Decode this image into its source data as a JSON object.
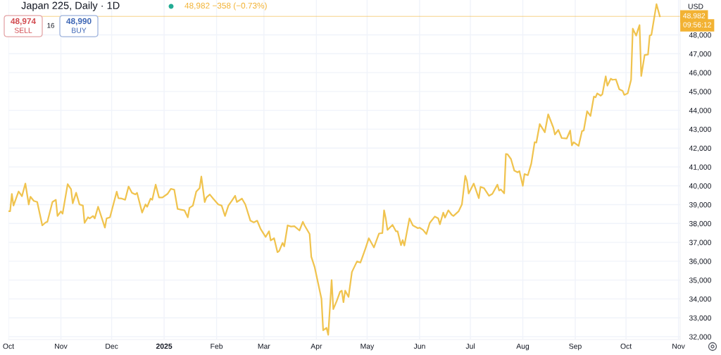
{
  "chart_data": {
    "type": "line",
    "title": "Japan 225, Daily · 1D",
    "annotations": [
      "48,982 −358 (−0.73%)",
      "48,974",
      "SELL",
      "16",
      "48,990",
      "BUY",
      "USD",
      "09:56:12"
    ],
    "x": [
      "2024-10-01",
      "2024-10-02",
      "2024-10-03",
      "2024-10-04",
      "2024-10-06",
      "2024-10-07",
      "2024-10-09",
      "2024-10-11",
      "2024-10-13",
      "2024-10-14",
      "2024-10-16",
      "2024-10-18",
      "2024-10-21",
      "2024-10-23",
      "2024-10-24",
      "2024-10-27",
      "2024-10-29",
      "2024-10-30",
      "2024-11-01",
      "2024-11-02",
      "2024-11-05",
      "2024-11-07",
      "2024-11-08",
      "2024-11-10",
      "2024-11-12",
      "2024-11-14",
      "2024-11-15",
      "2024-11-17",
      "2024-11-18",
      "2024-11-20",
      "2024-11-21",
      "2024-11-23",
      "2024-11-27",
      "2024-11-28",
      "2024-11-30",
      "2024-12-04",
      "2024-12-05",
      "2024-12-07",
      "2024-12-09",
      "2024-12-11",
      "2024-12-13",
      "2024-12-15",
      "2024-12-16",
      "2024-12-19",
      "2024-12-21",
      "2024-12-22",
      "2024-12-24",
      "2024-12-25",
      "2024-12-27",
      "2024-12-29",
      "2024-12-31",
      "2025-01-03",
      "2025-01-05",
      "2025-01-07",
      "2025-01-09",
      "2025-01-13",
      "2025-01-15",
      "2025-01-16",
      "2025-01-18",
      "2025-01-20",
      "2025-01-22",
      "2025-01-23",
      "2025-01-25",
      "2025-01-26",
      "2025-01-28",
      "2025-01-30",
      "2025-02-02",
      "2025-02-04",
      "2025-02-06",
      "2025-02-08",
      "2025-02-10",
      "2025-02-12",
      "2025-02-13",
      "2025-02-16",
      "2025-02-18",
      "2025-02-21",
      "2025-02-23",
      "2025-02-25",
      "2025-02-27",
      "2025-03-02",
      "2025-03-04",
      "2025-03-05",
      "2025-03-07",
      "2025-03-09",
      "2025-03-10",
      "2025-03-12",
      "2025-03-13",
      "2025-03-15",
      "2025-03-17",
      "2025-03-19",
      "2025-03-22",
      "2025-03-24",
      "2025-03-25",
      "2025-03-28",
      "2025-03-29",
      "2025-03-31",
      "2025-04-04",
      "2025-04-05",
      "2025-04-07",
      "2025-04-08",
      "2025-04-10",
      "2025-04-11",
      "2025-04-13",
      "2025-04-15",
      "2025-04-16",
      "2025-04-17",
      "2025-04-18",
      "2025-04-20",
      "2025-04-22",
      "2025-04-25",
      "2025-04-27",
      "2025-04-28",
      "2025-04-30",
      "2025-05-02",
      "2025-05-05",
      "2025-05-08",
      "2025-05-10",
      "2025-05-11",
      "2025-05-12",
      "2025-05-13",
      "2025-05-16",
      "2025-05-18",
      "2025-05-19",
      "2025-05-21",
      "2025-05-22",
      "2025-05-23",
      "2025-05-26",
      "2025-05-28",
      "2025-05-31",
      "2025-06-01",
      "2025-06-03",
      "2025-06-05",
      "2025-06-07",
      "2025-06-10",
      "2025-06-12",
      "2025-06-13",
      "2025-06-15",
      "2025-06-16",
      "2025-06-18",
      "2025-06-20",
      "2025-06-21",
      "2025-06-24",
      "2025-06-26",
      "2025-06-28",
      "2025-06-29",
      "2025-06-30",
      "2025-07-03",
      "2025-07-06",
      "2025-07-07",
      "2025-07-09",
      "2025-07-12",
      "2025-07-14",
      "2025-07-17",
      "2025-07-18",
      "2025-07-19",
      "2025-07-21",
      "2025-07-22",
      "2025-07-23",
      "2025-07-25",
      "2025-07-27",
      "2025-07-29",
      "2025-07-30",
      "2025-08-01",
      "2025-08-02",
      "2025-08-04",
      "2025-08-06",
      "2025-08-08",
      "2025-08-09",
      "2025-08-11",
      "2025-08-14",
      "2025-08-16",
      "2025-08-19",
      "2025-08-20",
      "2025-08-22",
      "2025-08-24",
      "2025-08-27",
      "2025-08-29",
      "2025-08-30",
      "2025-08-31",
      "2025-09-03",
      "2025-09-05",
      "2025-09-06",
      "2025-09-08",
      "2025-09-10",
      "2025-09-12",
      "2025-09-13",
      "2025-09-14",
      "2025-09-16",
      "2025-09-17",
      "2025-09-19",
      "2025-09-20",
      "2025-09-22",
      "2025-09-23",
      "2025-09-25",
      "2025-09-27",
      "2025-09-29",
      "2025-09-30",
      "2025-10-02",
      "2025-10-04",
      "2025-10-05",
      "2025-10-07",
      "2025-10-08",
      "2025-10-09",
      "2025-10-10",
      "2025-10-12",
      "2025-10-14",
      "2025-10-15",
      "2025-10-16",
      "2025-10-19",
      "2025-10-21"
    ],
    "series": [
      {
        "color": "#f0c34e",
        "values": [
          38650,
          38650,
          39570,
          38950,
          39450,
          39700,
          39450,
          40120,
          39010,
          39420,
          39200,
          39140,
          37900,
          38060,
          38090,
          39140,
          39260,
          38400,
          38640,
          38520,
          40090,
          39820,
          39070,
          39630,
          39010,
          38950,
          38030,
          38330,
          38270,
          38400,
          38270,
          38890,
          37780,
          38270,
          38330,
          39690,
          39340,
          39320,
          39260,
          39960,
          39630,
          39540,
          39630,
          38580,
          39010,
          38890,
          39320,
          39260,
          40060,
          39380,
          39380,
          39570,
          39840,
          39790,
          38770,
          38700,
          38330,
          38830,
          38950,
          39690,
          39880,
          40490,
          39140,
          39380,
          39540,
          39320,
          39010,
          38950,
          38400,
          38950,
          39200,
          39470,
          39140,
          39320,
          39010,
          38150,
          38060,
          38150,
          37720,
          37290,
          37590,
          37100,
          37220,
          36480,
          36540,
          36970,
          36790,
          37900,
          37840,
          37860,
          37630,
          38090,
          37900,
          37440,
          36230,
          35680,
          34010,
          32340,
          32470,
          32100,
          35000,
          33460,
          33890,
          34380,
          34440,
          33830,
          34440,
          34110,
          35430,
          35990,
          35930,
          36170,
          36670,
          37220,
          36730,
          37470,
          37490,
          38700,
          38270,
          37660,
          37930,
          37590,
          37590,
          36850,
          37120,
          36830,
          38270,
          37900,
          37750,
          37780,
          37660,
          37440,
          38030,
          38370,
          38270,
          37960,
          38580,
          38310,
          38700,
          38460,
          38400,
          38640,
          39010,
          40530,
          40250,
          39590,
          40120,
          39340,
          39940,
          39880,
          39470,
          39570,
          40060,
          39750,
          39810,
          39600,
          41690,
          41670,
          41420,
          40800,
          40710,
          40780,
          40000,
          40620,
          40560,
          41170,
          42310,
          42290,
          43270,
          42840,
          43790,
          43090,
          42720,
          42960,
          42530,
          42510,
          42930,
          42140,
          42310,
          42120,
          42900,
          42930,
          43950,
          43700,
          44730,
          44690,
          44900,
          44780,
          44850,
          45800,
          45310,
          45680,
          45620,
          45640,
          45120,
          45030,
          44820,
          44900,
          45620,
          48330,
          47960,
          48260,
          48520,
          45820,
          46930,
          46960,
          47960,
          48000,
          49630,
          48980
        ]
      }
    ],
    "xlim": [
      "2024-10-01",
      "2025-11-02"
    ],
    "xticks": [
      {
        "value": "2024-10-01",
        "label": "Oct"
      },
      {
        "value": "2024-11-01",
        "label": "Nov"
      },
      {
        "value": "2024-12-01",
        "label": "Dec"
      },
      {
        "value": "2025-01-01",
        "label": "2025"
      },
      {
        "value": "2025-02-01",
        "label": "Feb"
      },
      {
        "value": "2025-03-01",
        "label": "Mar"
      },
      {
        "value": "2025-04-01",
        "label": "Apr"
      },
      {
        "value": "2025-05-01",
        "label": "May"
      },
      {
        "value": "2025-06-01",
        "label": "Jun"
      },
      {
        "value": "2025-07-01",
        "label": "Jul"
      },
      {
        "value": "2025-08-01",
        "label": "Aug"
      },
      {
        "value": "2025-09-01",
        "label": "Sep"
      },
      {
        "value": "2025-10-01",
        "label": "Oct"
      },
      {
        "value": "2025-11-01",
        "label": "Nov"
      }
    ],
    "ylim": [
      31850,
      49850
    ],
    "yticks": [
      {
        "value": 32000,
        "label": "32,000"
      },
      {
        "value": 33000,
        "label": "33,000"
      },
      {
        "value": 34000,
        "label": "34,000"
      },
      {
        "value": 35000,
        "label": "35,000"
      },
      {
        "value": 36000,
        "label": "36,000"
      },
      {
        "value": 37000,
        "label": "37,000"
      },
      {
        "value": 38000,
        "label": "38,000"
      },
      {
        "value": 39000,
        "label": "39,000"
      },
      {
        "value": 40000,
        "label": "40,000"
      },
      {
        "value": 41000,
        "label": "41,000"
      },
      {
        "value": 42000,
        "label": "42,000"
      },
      {
        "value": 43000,
        "label": "43,000"
      },
      {
        "value": 44000,
        "label": "44,000"
      },
      {
        "value": 45000,
        "label": "45,000"
      },
      {
        "value": 46000,
        "label": "46,000"
      },
      {
        "value": 47000,
        "label": "47,000"
      },
      {
        "value": 48000,
        "label": "48,000"
      }
    ],
    "grid": true,
    "ref_lines": [
      {
        "axis": "y",
        "value": 48982,
        "label": "48,982",
        "color": "#f2b233"
      }
    ]
  }
}
